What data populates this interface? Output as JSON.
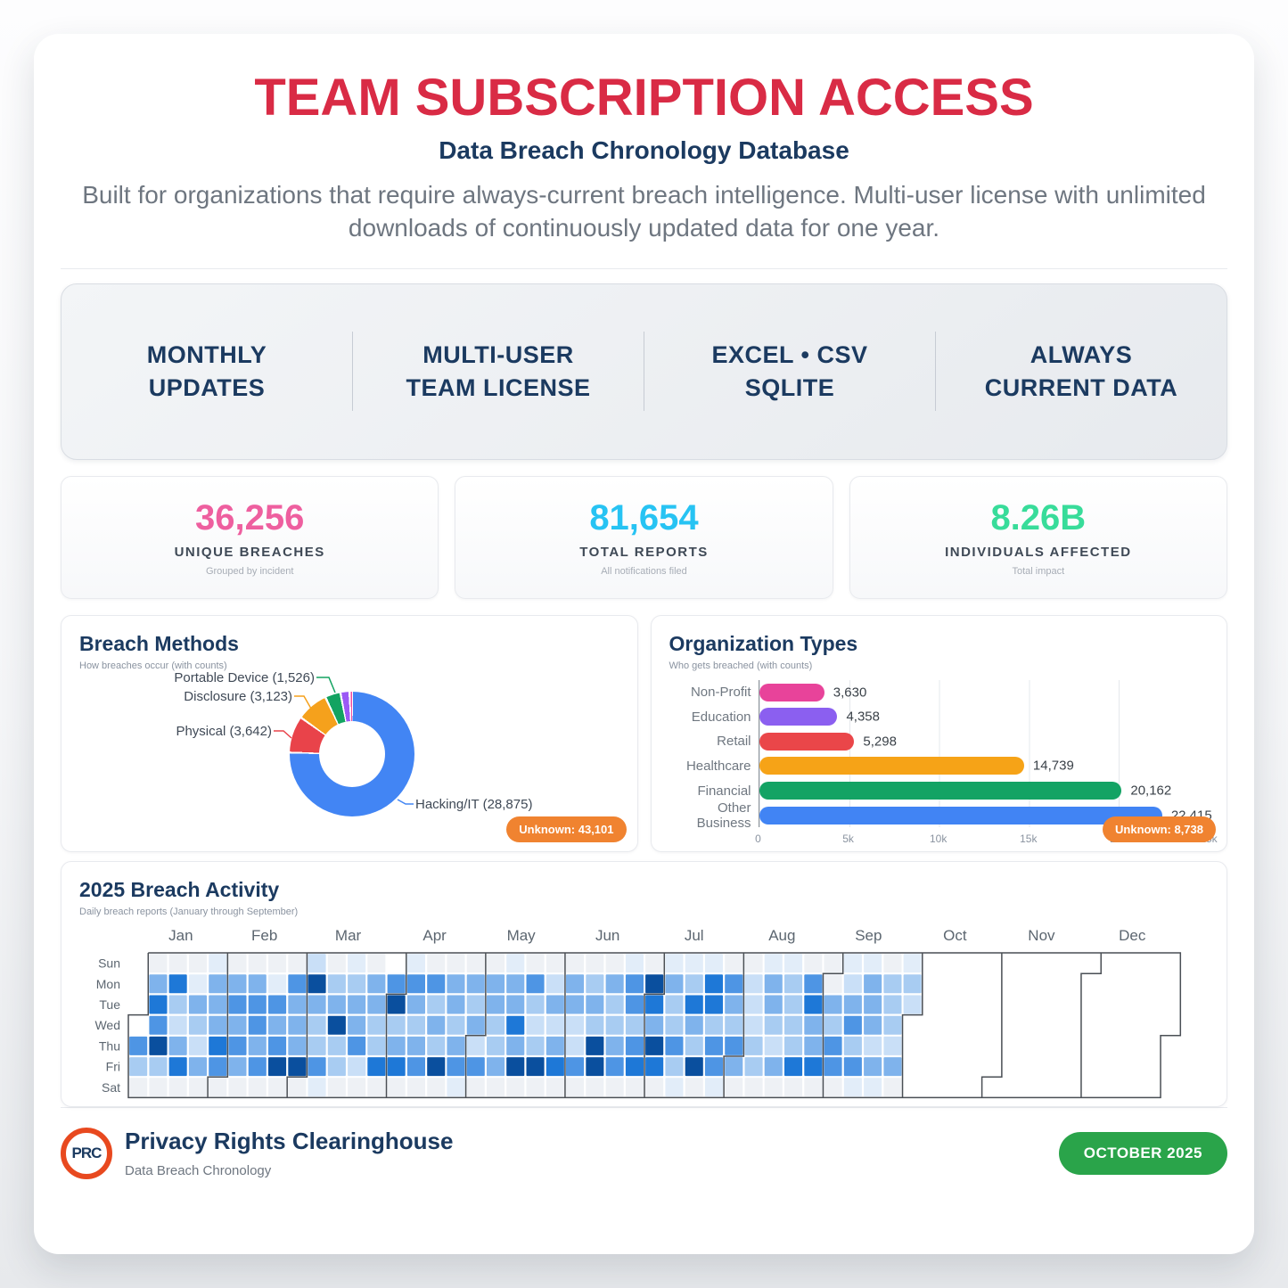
{
  "page": {
    "title": "TEAM SUBSCRIPTION ACCESS",
    "subtitle": "Data Breach Chronology Database",
    "description": "Built for organizations that require always-current breach intelligence. Multi-user license with unlimited downloads of continuously updated data for one year."
  },
  "features": {
    "items": [
      {
        "label": "MONTHLY\nUPDATES"
      },
      {
        "label": "MULTI-USER\nTEAM LICENSE"
      },
      {
        "label": "EXCEL • CSV\nSQLITE"
      },
      {
        "label": "ALWAYS\nCURRENT DATA"
      }
    ]
  },
  "stats": {
    "items": [
      {
        "value": "36,256",
        "label": "UNIQUE BREACHES",
        "sublabel": "Grouped by incident",
        "color": "#ee5f9f"
      },
      {
        "value": "81,654",
        "label": "TOTAL REPORTS",
        "sublabel": "All notifications filed",
        "color": "#27c3f3"
      },
      {
        "value": "8.26B",
        "label": "INDIVIDUALS AFFECTED",
        "sublabel": "Total impact",
        "color": "#38dc9a"
      }
    ]
  },
  "breach_methods": {
    "title": "Breach Methods",
    "subtitle": "How breaches occur (with counts)",
    "unknown_badge": "Unknown: 43,101"
  },
  "organization_types": {
    "title": "Organization Types",
    "subtitle": "Who gets breached (with counts)",
    "unknown_badge": "Unknown: 8,738"
  },
  "activity": {
    "title": "2025 Breach Activity",
    "subtitle": "Daily breach reports (January through September)"
  },
  "footer": {
    "logo_text": "PRC",
    "org": "Privacy Rights Clearinghouse",
    "product": "Data Breach Chronology",
    "badge": "OCTOBER 2025"
  },
  "chart_data": [
    {
      "id": "breach_methods",
      "type": "pie",
      "title": "Breach Methods",
      "subtitle": "How breaches occur (with counts)",
      "unknown_value": 43101,
      "segments": [
        {
          "label": "Hacking/IT",
          "value": 28875,
          "display": "Hacking/IT (28,875)",
          "color": "#4285f4"
        },
        {
          "label": "Physical",
          "value": 3642,
          "display": "Physical (3,642)",
          "color": "#e9434a"
        },
        {
          "label": "Disclosure",
          "value": 3123,
          "display": "Disclosure (3,123)",
          "color": "#f5a11c"
        },
        {
          "label": "Portable Device",
          "value": 1526,
          "display": "Portable Device (1,526)",
          "color": "#13a361"
        },
        {
          "label": "",
          "value": 900,
          "display": "",
          "color": "#9b59f5"
        },
        {
          "label": "",
          "value": 250,
          "display": "",
          "color": "#f24ba0"
        }
      ]
    },
    {
      "id": "organization_types",
      "type": "bar",
      "orientation": "horizontal",
      "title": "Organization Types",
      "xlim": [
        0,
        25000
      ],
      "tick_labels": [
        "0",
        "5k",
        "10k",
        "15k",
        "20k",
        "25k"
      ],
      "unknown_value": 8738,
      "categories": [
        "Non-Profit",
        "Education",
        "Retail",
        "Healthcare",
        "Financial",
        "Other Business"
      ],
      "values": [
        3630,
        4358,
        5298,
        14739,
        20162,
        22415
      ],
      "display_values": [
        "3,630",
        "4,358",
        "5,298",
        "14,739",
        "20,162",
        "22,415"
      ],
      "colors": [
        "#e8439a",
        "#8b5ff0",
        "#ea4649",
        "#f6a317",
        "#13a364",
        "#4184f4"
      ]
    },
    {
      "id": "activity_2025",
      "type": "heatmap",
      "title": "2025 Breach Activity",
      "day_labels": [
        "Sun",
        "Mon",
        "Tue",
        "Wed",
        "Thu",
        "Fri",
        "Sat"
      ],
      "months": [
        {
          "label": "Jan",
          "week": 0,
          "dow": 3
        },
        {
          "label": "Feb",
          "week": 4,
          "dow": 6
        },
        {
          "label": "Mar",
          "week": 8,
          "dow": 6
        },
        {
          "label": "Apr",
          "week": 13,
          "dow": 2
        },
        {
          "label": "May",
          "week": 17,
          "dow": 4
        },
        {
          "label": "Jun",
          "week": 22,
          "dow": 0
        },
        {
          "label": "Jul",
          "week": 26,
          "dow": 2
        },
        {
          "label": "Aug",
          "week": 30,
          "dow": 5
        },
        {
          "label": "Sep",
          "week": 35,
          "dow": 1
        },
        {
          "label": "Oct",
          "week": 39,
          "dow": 3
        },
        {
          "label": "Nov",
          "week": 43,
          "dow": 6
        },
        {
          "label": "Dec",
          "week": 48,
          "dow": 1
        }
      ],
      "palette": [
        "#eef1f5",
        "#e2edf9",
        "#c9dff7",
        "#a8ccf2",
        "#7fb3ec",
        "#4e95e4",
        "#1e78d7",
        "#0a4f9e"
      ],
      "weeks": [
        "....530",
        "0465730",
        "0632460",
        "0143240",
        "1444650",
        "0454540",
        "0455450",
        "0154570",
        "0544470",
        "2743351",
        "0347330",
        "1344520",
        "0443360",
        ".573460",
        "1543450",
        "0534370",
        "0443451",
        "0434250",
        "0443340",
        "1446470",
        "0532370",
        "0242460",
        "0442250",
        "0343770",
        "0433450",
        "1553560",
        "0764760",
        "1433531",
        "1364370",
        "1663551",
        "0543540",
        "0222330",
        "1443240",
        "1333360",
        "0564460",
        "0043550",
        "1245351",
        "1444241",
        "0333240",
        "132....",
        ".......",
        ".......",
        ".......",
        ".......",
        ".......",
        ".......",
        ".......",
        ".......",
        ".......",
        ".......",
        ".......",
        ".......",
        "......."
      ]
    }
  ]
}
